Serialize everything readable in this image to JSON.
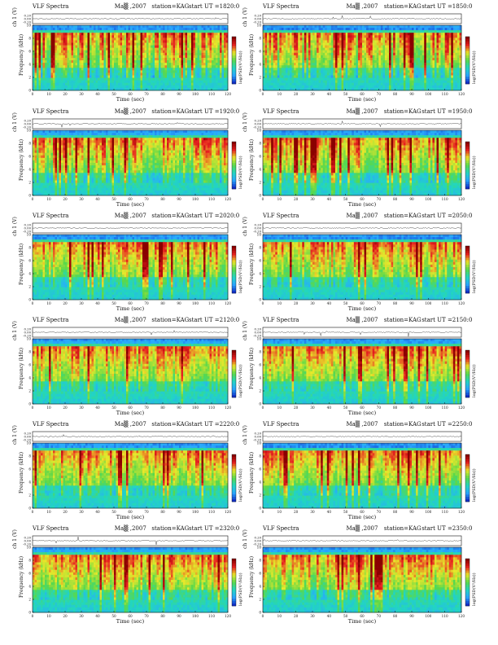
{
  "page": {
    "title_prefix": "VLF Spectra"
  },
  "colors": {
    "spectro_stops": [
      "#1030c8",
      "#2aa8ff",
      "#22d6c0",
      "#5ad84a",
      "#e8e82a",
      "#e82020",
      "#8a0000"
    ],
    "line": "#111111",
    "background_band": "#25c4c0"
  },
  "chart_data": [
    {
      "type": "heatmap",
      "title": "VLF Spectra",
      "date": "Ma▒ ,2007",
      "station": "station=KAG",
      "start_ut": "start UT =1820:0",
      "xlabel": "Time (sec)",
      "ylabel": "Frequency (kHz)",
      "aux_label": "ch 1 (V)",
      "aux_ticks": [
        "0.20",
        "0.00",
        "-0.20"
      ],
      "colorbar_label": "log(PSD(V²/Hz))",
      "xlim": [
        0,
        120
      ],
      "ylim": [
        0,
        10
      ],
      "x_ticks": [
        0,
        10,
        20,
        30,
        40,
        50,
        60,
        70,
        80,
        90,
        100,
        110,
        120
      ],
      "y_ticks": [
        0,
        2,
        4,
        6,
        8,
        10
      ],
      "activity": 0.85
    },
    {
      "type": "heatmap",
      "title": "VLF Spectra",
      "date": "Ma▒ ,2007",
      "station": "station=KAG",
      "start_ut": "start UT =1850:0",
      "xlabel": "Time (sec)",
      "ylabel": "Frequency (kHz)",
      "aux_label": "ch 1 (V)",
      "aux_ticks": [
        "0.20",
        "0.00",
        "-0.20"
      ],
      "colorbar_label": "log(PSD(V²/Hz))",
      "xlim": [
        0,
        120
      ],
      "ylim": [
        0,
        10
      ],
      "x_ticks": [
        0,
        10,
        20,
        30,
        40,
        50,
        60,
        70,
        80,
        90,
        100,
        110,
        120
      ],
      "y_ticks": [
        0,
        2,
        4,
        6,
        8,
        10
      ],
      "activity": 0.8
    },
    {
      "type": "heatmap",
      "title": "VLF Spectra",
      "date": "Ma▒ ,2007",
      "station": "station=KAG",
      "start_ut": "start UT =1920:0",
      "xlabel": "Time (sec)",
      "ylabel": "Frequency (kHz)",
      "aux_label": "ch 1 (V)",
      "aux_ticks": [
        "0.20",
        "0.00",
        "-0.20"
      ],
      "colorbar_label": "log(PSD(V²/Hz))",
      "xlim": [
        0,
        120
      ],
      "ylim": [
        0,
        10
      ],
      "x_ticks": [
        0,
        10,
        20,
        30,
        40,
        50,
        60,
        70,
        80,
        90,
        100,
        110,
        120
      ],
      "y_ticks": [
        0,
        2,
        4,
        6,
        8,
        10
      ],
      "activity": 0.7
    },
    {
      "type": "heatmap",
      "title": "VLF Spectra",
      "date": "Ma▒ ,2007",
      "station": "station=KAG",
      "start_ut": "start UT =1950:0",
      "xlabel": "Time (sec)",
      "ylabel": "Frequency (kHz)",
      "aux_label": "ch 1 (V)",
      "aux_ticks": [
        "0.20",
        "0.00",
        "-0.20"
      ],
      "colorbar_label": "log(PSD(V²/Hz))",
      "xlim": [
        0,
        120
      ],
      "ylim": [
        0,
        10
      ],
      "x_ticks": [
        0,
        10,
        20,
        30,
        40,
        50,
        60,
        70,
        80,
        90,
        100,
        110,
        120
      ],
      "y_ticks": [
        0,
        2,
        4,
        6,
        8,
        10
      ],
      "activity": 0.68
    },
    {
      "type": "heatmap",
      "title": "VLF Spectra",
      "date": "Ma▒ ,2007",
      "station": "station=KAG",
      "start_ut": "start UT =2020:0",
      "xlabel": "Time (sec)",
      "ylabel": "Frequency (kHz)",
      "aux_label": "ch 1 (V)",
      "aux_ticks": [
        "0.20",
        "0.00",
        "-0.20"
      ],
      "colorbar_label": "log(PSD(V²/Hz))",
      "xlim": [
        0,
        120
      ],
      "ylim": [
        0,
        10
      ],
      "x_ticks": [
        0,
        10,
        20,
        30,
        40,
        50,
        60,
        70,
        80,
        90,
        100,
        110,
        120
      ],
      "y_ticks": [
        0,
        2,
        4,
        6,
        8,
        10
      ],
      "activity": 0.65
    },
    {
      "type": "heatmap",
      "title": "VLF Spectra",
      "date": "Ma▒ ,2007",
      "station": "station=KAG",
      "start_ut": "start UT =2050:0",
      "xlabel": "Time (sec)",
      "ylabel": "Frequency (kHz)",
      "aux_label": "ch 1 (V)",
      "aux_ticks": [
        "0.20",
        "0.00",
        "-0.20"
      ],
      "colorbar_label": "log(PSD(V²/Hz))",
      "xlim": [
        0,
        120
      ],
      "ylim": [
        0,
        10
      ],
      "x_ticks": [
        0,
        10,
        20,
        30,
        40,
        50,
        60,
        70,
        80,
        90,
        100,
        110,
        120
      ],
      "y_ticks": [
        0,
        2,
        4,
        6,
        8,
        10
      ],
      "activity": 0.62
    },
    {
      "type": "heatmap",
      "title": "VLF Spectra",
      "date": "Ma▒ ,2007",
      "station": "station=KAG",
      "start_ut": "start UT =2120:0",
      "xlabel": "Time (sec)",
      "ylabel": "Frequency (kHz)",
      "aux_label": "ch 1 (V)",
      "aux_ticks": [
        "0.20",
        "0.00",
        "-0.20"
      ],
      "colorbar_label": "log(PSD(V²/Hz))",
      "xlim": [
        0,
        120
      ],
      "ylim": [
        0,
        10
      ],
      "x_ticks": [
        0,
        10,
        20,
        30,
        40,
        50,
        60,
        70,
        80,
        90,
        100,
        110,
        120
      ],
      "y_ticks": [
        0,
        2,
        4,
        6,
        8,
        10
      ],
      "activity": 0.5
    },
    {
      "type": "heatmap",
      "title": "VLF Spectra",
      "date": "Ma▒ ,2007",
      "station": "station=KAG",
      "start_ut": "start UT =2150:0",
      "xlabel": "Time (sec)",
      "ylabel": "Frequency (kHz)",
      "aux_label": "ch 1 (V)",
      "aux_ticks": [
        "0.20",
        "0.00",
        "-0.20"
      ],
      "colorbar_label": "log(PSD(V²/Hz))",
      "xlim": [
        0,
        120
      ],
      "ylim": [
        0,
        10
      ],
      "x_ticks": [
        0,
        10,
        20,
        30,
        40,
        50,
        60,
        70,
        80,
        90,
        100,
        110,
        120
      ],
      "y_ticks": [
        0,
        2,
        4,
        6,
        8,
        10
      ],
      "activity": 0.48
    },
    {
      "type": "heatmap",
      "title": "VLF Spectra",
      "date": "Ma▒ ,2007",
      "station": "station=KAG",
      "start_ut": "start UT =2220:0",
      "xlabel": "Time (sec)",
      "ylabel": "Frequency (kHz)",
      "aux_label": "ch 1 (V)",
      "aux_ticks": [
        "0.20",
        "0.00",
        "-0.20"
      ],
      "colorbar_label": "log(PSD(V²/Hz))",
      "xlim": [
        0,
        120
      ],
      "ylim": [
        0,
        10
      ],
      "x_ticks": [
        0,
        10,
        20,
        30,
        40,
        50,
        60,
        70,
        80,
        90,
        100,
        110,
        120
      ],
      "y_ticks": [
        0,
        2,
        4,
        6,
        8,
        10
      ],
      "activity": 0.55
    },
    {
      "type": "heatmap",
      "title": "VLF Spectra",
      "date": "Ma▒ ,2007",
      "station": "station=KAG",
      "start_ut": "start UT =2250:0",
      "xlabel": "Time (sec)",
      "ylabel": "Frequency (kHz)",
      "aux_label": "ch 1 (V)",
      "aux_ticks": [
        "0.20",
        "0.00",
        "-0.20"
      ],
      "colorbar_label": "log(PSD(V²/Hz))",
      "xlim": [
        0,
        120
      ],
      "ylim": [
        0,
        10
      ],
      "x_ticks": [
        0,
        10,
        20,
        30,
        40,
        50,
        60,
        70,
        80,
        90,
        100,
        110,
        120
      ],
      "y_ticks": [
        0,
        2,
        4,
        6,
        8,
        10
      ],
      "activity": 0.58
    },
    {
      "type": "heatmap",
      "title": "VLF Spectra",
      "date": "Ma▒ ,2007",
      "station": "station=KAG",
      "start_ut": "start UT =2320:0",
      "xlabel": "Time (sec)",
      "ylabel": "Frequency (kHz)",
      "aux_label": "ch 1 (V)",
      "aux_ticks": [
        "0.20",
        "0.00",
        "-0.20"
      ],
      "colorbar_label": "log(PSD(V²/Hz))",
      "xlim": [
        0,
        120
      ],
      "ylim": [
        0,
        10
      ],
      "x_ticks": [
        0,
        10,
        20,
        30,
        40,
        50,
        60,
        70,
        80,
        90,
        100,
        110,
        120
      ],
      "y_ticks": [
        0,
        2,
        4,
        6,
        8,
        10
      ],
      "activity": 0.55
    },
    {
      "type": "heatmap",
      "title": "VLF Spectra",
      "date": "Ma▒ ,2007",
      "station": "station=KAG",
      "start_ut": "start UT =2350:0",
      "xlabel": "Time (sec)",
      "ylabel": "Frequency (kHz)",
      "aux_label": "ch 1 (V)",
      "aux_ticks": [
        "0.20",
        "0.00",
        "-0.20"
      ],
      "colorbar_label": "log(PSD(V²/Hz))",
      "xlim": [
        0,
        120
      ],
      "ylim": [
        0,
        10
      ],
      "x_ticks": [
        0,
        10,
        20,
        30,
        40,
        50,
        60,
        70,
        80,
        90,
        100,
        110,
        120
      ],
      "y_ticks": [
        0,
        2,
        4,
        6,
        8,
        10
      ],
      "activity": 0.6
    }
  ]
}
